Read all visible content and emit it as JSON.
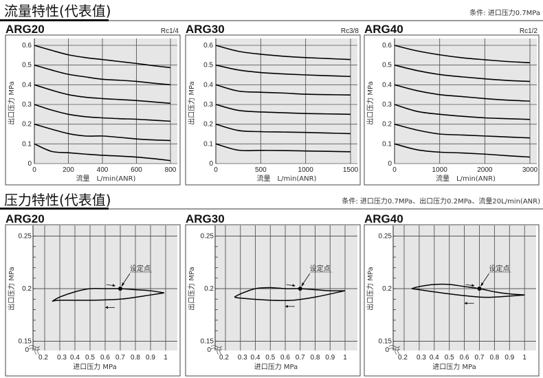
{
  "sections": [
    {
      "title": "流量特性(代表值)",
      "condition": "条件: 进口压力0.7MPa"
    },
    {
      "title": "压力特性(代表值)",
      "condition": "条件: 进口压力0.7MPa、出口压力0.2MPa、流量20L/min(ANR)"
    }
  ],
  "colors": {
    "plot_bg": "#e6e6e6",
    "grid": "#555555",
    "curve": "#000000",
    "frame": "#444444"
  },
  "chart_data": [
    {
      "type": "line",
      "title": "ARG20",
      "port": "Rc1/4",
      "xlabel": "流量　L/min(ANR)",
      "ylabel": "出口压力 MPa",
      "xlim": [
        0,
        800
      ],
      "ylim": [
        0,
        0.6
      ],
      "xticks": [
        "0",
        "200",
        "400",
        "600",
        "800"
      ],
      "yticks": [
        "0",
        "0.1",
        "0.2",
        "0.3",
        "0.4",
        "0.5",
        "0.6"
      ],
      "grid": true,
      "x": [
        0,
        100,
        200,
        300,
        400,
        500,
        600,
        700,
        800
      ],
      "series": [
        {
          "values": [
            0.6,
            0.575,
            0.552,
            0.538,
            0.528,
            0.518,
            0.508,
            0.497,
            0.487
          ]
        },
        {
          "values": [
            0.5,
            0.475,
            0.453,
            0.44,
            0.428,
            0.423,
            0.417,
            0.408,
            0.4
          ]
        },
        {
          "values": [
            0.4,
            0.373,
            0.35,
            0.337,
            0.33,
            0.325,
            0.32,
            0.313,
            0.306
          ]
        },
        {
          "values": [
            0.3,
            0.272,
            0.25,
            0.238,
            0.232,
            0.228,
            0.225,
            0.22,
            0.215
          ]
        },
        {
          "values": [
            0.2,
            0.175,
            0.152,
            0.14,
            0.14,
            0.133,
            0.125,
            0.12,
            0.117
          ]
        },
        {
          "values": [
            0.1,
            0.062,
            0.055,
            0.048,
            0.042,
            0.038,
            0.033,
            0.025,
            0.015
          ]
        }
      ]
    },
    {
      "type": "line",
      "title": "ARG30",
      "port": "Rc3/8",
      "xlabel": "流量　L/min(ANR)",
      "ylabel": "出口压力 MPa",
      "xlim": [
        0,
        1500
      ],
      "ylim": [
        0,
        0.6
      ],
      "xticks": [
        "0",
        "500",
        "1000",
        "1500"
      ],
      "yticks": [
        "0",
        "0.1",
        "0.2",
        "0.3",
        "0.4",
        "0.5",
        "0.6"
      ],
      "grid": true,
      "x": [
        0,
        250,
        500,
        750,
        1000,
        1250,
        1500
      ],
      "series": [
        {
          "values": [
            0.6,
            0.57,
            0.555,
            0.545,
            0.538,
            0.533,
            0.528
          ]
        },
        {
          "values": [
            0.5,
            0.475,
            0.462,
            0.455,
            0.45,
            0.446,
            0.442
          ]
        },
        {
          "values": [
            0.4,
            0.368,
            0.362,
            0.358,
            0.352,
            0.35,
            0.348
          ]
        },
        {
          "values": [
            0.3,
            0.27,
            0.262,
            0.258,
            0.254,
            0.252,
            0.25
          ]
        },
        {
          "values": [
            0.2,
            0.168,
            0.162,
            0.16,
            0.158,
            0.155,
            0.152
          ]
        },
        {
          "values": [
            0.1,
            0.068,
            0.067,
            0.066,
            0.064,
            0.062,
            0.06
          ]
        }
      ]
    },
    {
      "type": "line",
      "title": "ARG40",
      "port": "Rc1/2",
      "xlabel": "流量　L/min(ANR)",
      "ylabel": "出口压力 MPa",
      "xlim": [
        0,
        3000
      ],
      "ylim": [
        0,
        0.6
      ],
      "xticks": [
        "0",
        "1000",
        "2000",
        "3000"
      ],
      "yticks": [
        "0",
        "0.1",
        "0.2",
        "0.3",
        "0.4",
        "0.5",
        "0.6"
      ],
      "grid": true,
      "x": [
        0,
        500,
        1000,
        1500,
        2000,
        2500,
        3000
      ],
      "series": [
        {
          "values": [
            0.6,
            0.572,
            0.552,
            0.537,
            0.527,
            0.518,
            0.512
          ]
        },
        {
          "values": [
            0.5,
            0.472,
            0.452,
            0.44,
            0.43,
            0.422,
            0.417
          ]
        },
        {
          "values": [
            0.4,
            0.37,
            0.35,
            0.34,
            0.33,
            0.322,
            0.317
          ]
        },
        {
          "values": [
            0.3,
            0.265,
            0.25,
            0.24,
            0.232,
            0.228,
            0.224
          ]
        },
        {
          "values": [
            0.2,
            0.17,
            0.15,
            0.145,
            0.14,
            0.135,
            0.13
          ]
        },
        {
          "values": [
            0.1,
            0.07,
            0.058,
            0.054,
            0.048,
            0.04,
            0.033
          ]
        }
      ]
    },
    {
      "type": "line",
      "title": "ARG20",
      "xlabel": "进口压力  MPa",
      "ylabel": "出口压力 MPa",
      "set_point_label": "设定点",
      "set_point": [
        0.7,
        0.2
      ],
      "xlim": [
        0.2,
        1.0
      ],
      "ylim": [
        0.15,
        0.25
      ],
      "xticks": [
        "0.2",
        "0.3",
        "0.4",
        "0.5",
        "0.6",
        "0.7",
        "0.8",
        "0.9",
        "1"
      ],
      "yticks": [
        "0.15",
        "0.2",
        "0.25"
      ],
      "origin_label": "0",
      "grid": true,
      "series": [
        {
          "x": [
            0.25,
            0.3,
            0.4,
            0.5,
            0.6,
            0.7,
            0.8,
            0.9,
            0.99
          ],
          "values": [
            0.188,
            0.192,
            0.197,
            0.2,
            0.2,
            0.2,
            0.199,
            0.198,
            0.196
          ]
        },
        {
          "x": [
            0.25,
            0.3,
            0.5,
            0.7,
            0.9,
            0.99
          ],
          "values": [
            0.188,
            0.189,
            0.189,
            0.19,
            0.194,
            0.196
          ]
        }
      ]
    },
    {
      "type": "line",
      "title": "ARG30",
      "xlabel": "进口压力  MPa",
      "ylabel": "出口压力 MPa",
      "set_point_label": "设定点",
      "set_point": [
        0.7,
        0.2
      ],
      "xlim": [
        0.2,
        1.0
      ],
      "ylim": [
        0.15,
        0.25
      ],
      "xticks": [
        "0.2",
        "0.3",
        "0.4",
        "0.5",
        "0.6",
        "0.7",
        "0.8",
        "0.9",
        "1"
      ],
      "yticks": [
        "0.15",
        "0.2",
        "0.25"
      ],
      "origin_label": "0",
      "grid": true,
      "series": [
        {
          "x": [
            0.26,
            0.3,
            0.4,
            0.5,
            0.6,
            0.7,
            0.8,
            0.9,
            1.0
          ],
          "values": [
            0.192,
            0.195,
            0.2,
            0.201,
            0.2,
            0.2,
            0.199,
            0.198,
            0.198
          ]
        },
        {
          "x": [
            0.26,
            0.3,
            0.5,
            0.65,
            0.8,
            1.0
          ],
          "values": [
            0.192,
            0.191,
            0.189,
            0.189,
            0.192,
            0.198
          ]
        }
      ]
    },
    {
      "type": "line",
      "title": "ARG40",
      "xlabel": "进口压力  MPa",
      "ylabel": "出口压力 MPa",
      "set_point_label": "设定点",
      "set_point": [
        0.7,
        0.2
      ],
      "xlim": [
        0.2,
        1.0
      ],
      "ylim": [
        0.15,
        0.25
      ],
      "xticks": [
        "0.2",
        "0.3",
        "0.4",
        "0.5",
        "0.6",
        "0.7",
        "0.8",
        "0.9",
        "1"
      ],
      "yticks": [
        "0.15",
        "0.2",
        "0.25"
      ],
      "origin_label": "0",
      "grid": true,
      "series": [
        {
          "x": [
            0.25,
            0.3,
            0.4,
            0.5,
            0.6,
            0.7,
            0.8,
            0.9,
            1.0
          ],
          "values": [
            0.2,
            0.202,
            0.204,
            0.204,
            0.202,
            0.2,
            0.197,
            0.195,
            0.194
          ]
        },
        {
          "x": [
            0.25,
            0.3,
            0.5,
            0.7,
            0.8,
            1.0
          ],
          "values": [
            0.2,
            0.199,
            0.195,
            0.192,
            0.192,
            0.194
          ]
        }
      ]
    }
  ]
}
